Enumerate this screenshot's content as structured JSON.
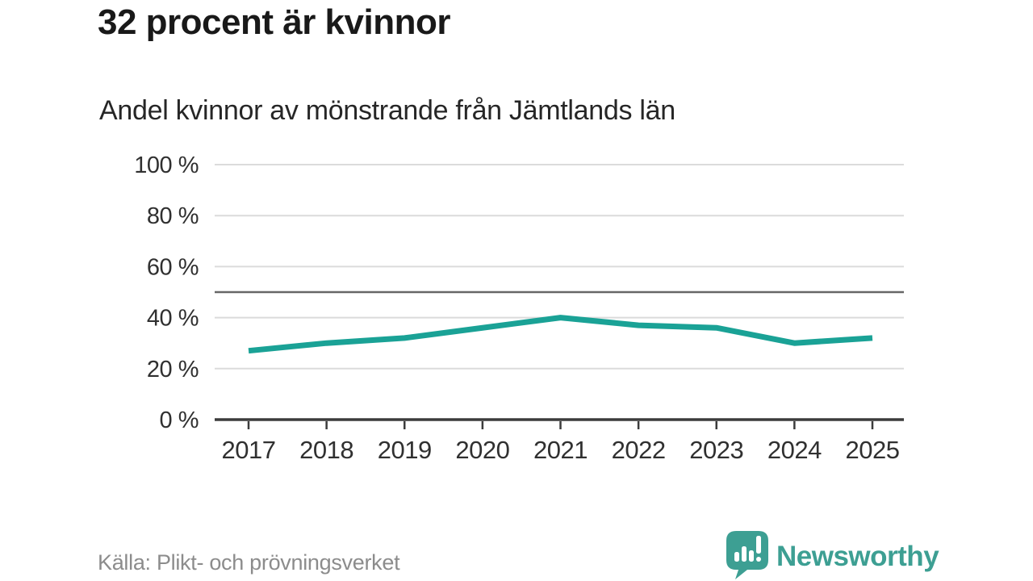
{
  "header": {
    "title": "32 procent är kvinnor",
    "subtitle": "Andel kvinnor av mönstrande från Jämtlands län"
  },
  "footer": {
    "source": "Källa: Plikt- och prövningsverket",
    "brand": "Newsworthy"
  },
  "colors": {
    "line": "#1aa296",
    "brand": "#3d9f93",
    "grid": "#dbdbdb",
    "reference_line": "#676767",
    "axis": "#3c3c3c",
    "tick_label": "#303030",
    "source_text": "#8c8c8c"
  },
  "chart_data": {
    "type": "line",
    "title": "32 procent är kvinnor",
    "subtitle": "Andel kvinnor av mönstrande från Jämtlands län",
    "x": [
      2017,
      2018,
      2019,
      2020,
      2021,
      2022,
      2023,
      2024,
      2025
    ],
    "series": [
      {
        "name": "Andel kvinnor av mönstrande",
        "values": [
          27,
          30,
          32,
          36,
          40,
          37,
          36,
          30,
          32
        ]
      }
    ],
    "unit": "%",
    "xlabel": "",
    "ylabel": "",
    "ylim": [
      0,
      100
    ],
    "yticks": [
      0,
      20,
      40,
      60,
      80,
      100
    ],
    "ytick_suffix": " %",
    "reference_line": 50,
    "grid": true,
    "legend": "none"
  }
}
